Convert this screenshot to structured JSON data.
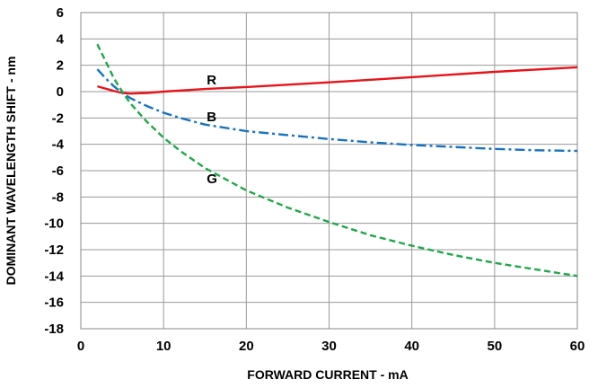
{
  "chart_data": {
    "type": "line",
    "xlabel": "FORWARD CURRENT - mA",
    "ylabel": "DOMINANT WAVELENGTH SHIFT - nm",
    "xlim": [
      0,
      60
    ],
    "ylim": [
      -18,
      6
    ],
    "xticks": [
      0,
      10,
      20,
      30,
      40,
      50,
      60
    ],
    "yticks": [
      6,
      4,
      2,
      0,
      -2,
      -4,
      -6,
      -8,
      -10,
      -12,
      -14,
      -16,
      -18
    ],
    "grid": true,
    "series": [
      {
        "name": "R",
        "color": "#e8141b",
        "style": "solid",
        "x": [
          2,
          4,
          5,
          6,
          8,
          10,
          15,
          20,
          30,
          40,
          50,
          60
        ],
        "y": [
          0.4,
          0.05,
          -0.1,
          -0.15,
          -0.1,
          0.0,
          0.2,
          0.35,
          0.7,
          1.1,
          1.5,
          1.85
        ]
      },
      {
        "name": "B",
        "color": "#1673c1",
        "style": "dashdot",
        "x": [
          2,
          3,
          4,
          5,
          6,
          8,
          10,
          12,
          15,
          20,
          25,
          30,
          35,
          40,
          45,
          50,
          55,
          60
        ],
        "y": [
          1.7,
          1.0,
          0.4,
          -0.1,
          -0.5,
          -1.1,
          -1.6,
          -2.0,
          -2.5,
          -3.0,
          -3.3,
          -3.6,
          -3.85,
          -4.05,
          -4.2,
          -4.35,
          -4.45,
          -4.5
        ]
      },
      {
        "name": "G",
        "color": "#1ea84a",
        "style": "dashed",
        "x": [
          2,
          3,
          4,
          5,
          6,
          7,
          8,
          10,
          12,
          15,
          20,
          25,
          30,
          35,
          40,
          45,
          50,
          55,
          60
        ],
        "y": [
          3.6,
          2.3,
          1.0,
          0.0,
          -0.9,
          -1.6,
          -2.3,
          -3.5,
          -4.5,
          -5.8,
          -7.5,
          -8.8,
          -9.9,
          -10.9,
          -11.7,
          -12.4,
          -13.0,
          -13.5,
          -14.0
        ]
      }
    ],
    "annotations": [
      {
        "text": "R",
        "x": 15,
        "y": 0.9
      },
      {
        "text": "B",
        "x": 15,
        "y": -1.9
      },
      {
        "text": "G",
        "x": 15,
        "y": -6.6
      }
    ]
  }
}
